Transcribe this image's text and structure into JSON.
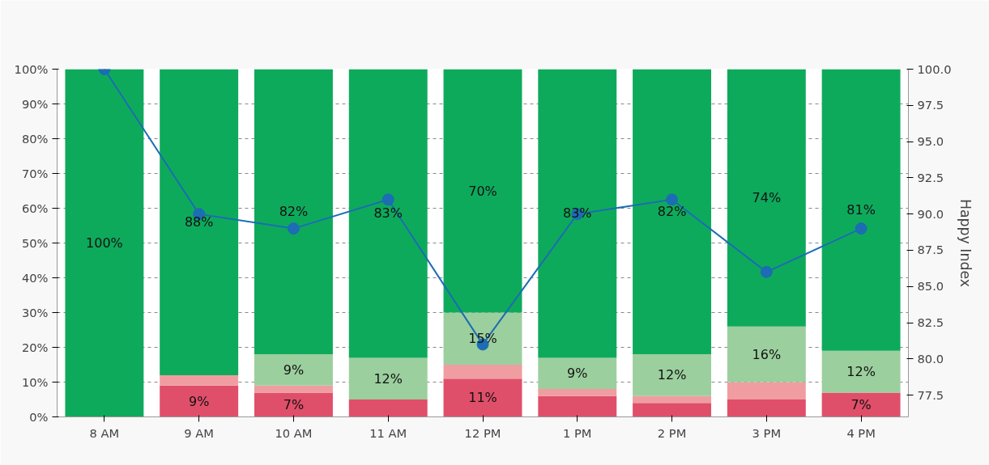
{
  "chart_data": {
    "type": "bar",
    "stacked": true,
    "y2label": "Happy Index",
    "grid": "y",
    "categories": [
      "8 AM",
      "9 AM",
      "10 AM",
      "11 AM",
      "12 PM",
      "1 PM",
      "2 PM",
      "3 PM",
      "4 PM"
    ],
    "ylim": [
      0,
      100
    ],
    "yticks": [
      {
        "value": 0,
        "label": "0%"
      },
      {
        "value": 10,
        "label": "10%"
      },
      {
        "value": 20,
        "label": "20%"
      },
      {
        "value": 30,
        "label": "30%"
      },
      {
        "value": 40,
        "label": "40%"
      },
      {
        "value": 50,
        "label": "50%"
      },
      {
        "value": 60,
        "label": "60%"
      },
      {
        "value": 70,
        "label": "70%"
      },
      {
        "value": 80,
        "label": "80%"
      },
      {
        "value": 90,
        "label": "90%"
      },
      {
        "value": 100,
        "label": "100%"
      }
    ],
    "y2lim": [
      76,
      100
    ],
    "y2ticks": [
      {
        "value": 77.5,
        "label": "77.5"
      },
      {
        "value": 80,
        "label": "80.0"
      },
      {
        "value": 82.5,
        "label": "82.5"
      },
      {
        "value": 85,
        "label": "85.0"
      },
      {
        "value": 87.5,
        "label": "87.5"
      },
      {
        "value": 90,
        "label": "90.0"
      },
      {
        "value": 92.5,
        "label": "92.5"
      },
      {
        "value": 95,
        "label": "95.0"
      },
      {
        "value": 97.5,
        "label": "97.5"
      },
      {
        "value": 100,
        "label": "100.0"
      }
    ],
    "series": [
      {
        "color": "#e04f6a",
        "values": [
          null,
          9,
          7,
          5,
          11,
          6,
          4,
          5,
          7
        ],
        "value_labels": [
          null,
          "9%",
          "7%",
          null,
          "11%",
          null,
          null,
          null,
          "7%"
        ]
      },
      {
        "color": "#f09da1",
        "values": [
          null,
          3,
          2,
          null,
          4,
          2,
          2,
          5,
          null
        ],
        "value_labels": [
          null,
          null,
          null,
          null,
          null,
          null,
          null,
          null,
          null
        ]
      },
      {
        "color": "#9ccf9e",
        "values": [
          null,
          null,
          9,
          12,
          15,
          9,
          12,
          16,
          12
        ],
        "value_labels": [
          null,
          null,
          "9%",
          "12%",
          "15%",
          "9%",
          "12%",
          "16%",
          "12%"
        ]
      },
      {
        "color": "#0eaa5c",
        "values": [
          100,
          88,
          82,
          83,
          70,
          83,
          82,
          74,
          81
        ],
        "value_labels": [
          "100%",
          "88%",
          "82%",
          "83%",
          "70%",
          "83%",
          "82%",
          "74%",
          "81%"
        ]
      },
      {
        "type": "line",
        "axis": "y2",
        "color": "#1c6db3",
        "marker": "circle",
        "values": [
          100,
          90,
          89,
          91,
          81,
          90,
          91,
          86,
          89
        ]
      }
    ]
  }
}
